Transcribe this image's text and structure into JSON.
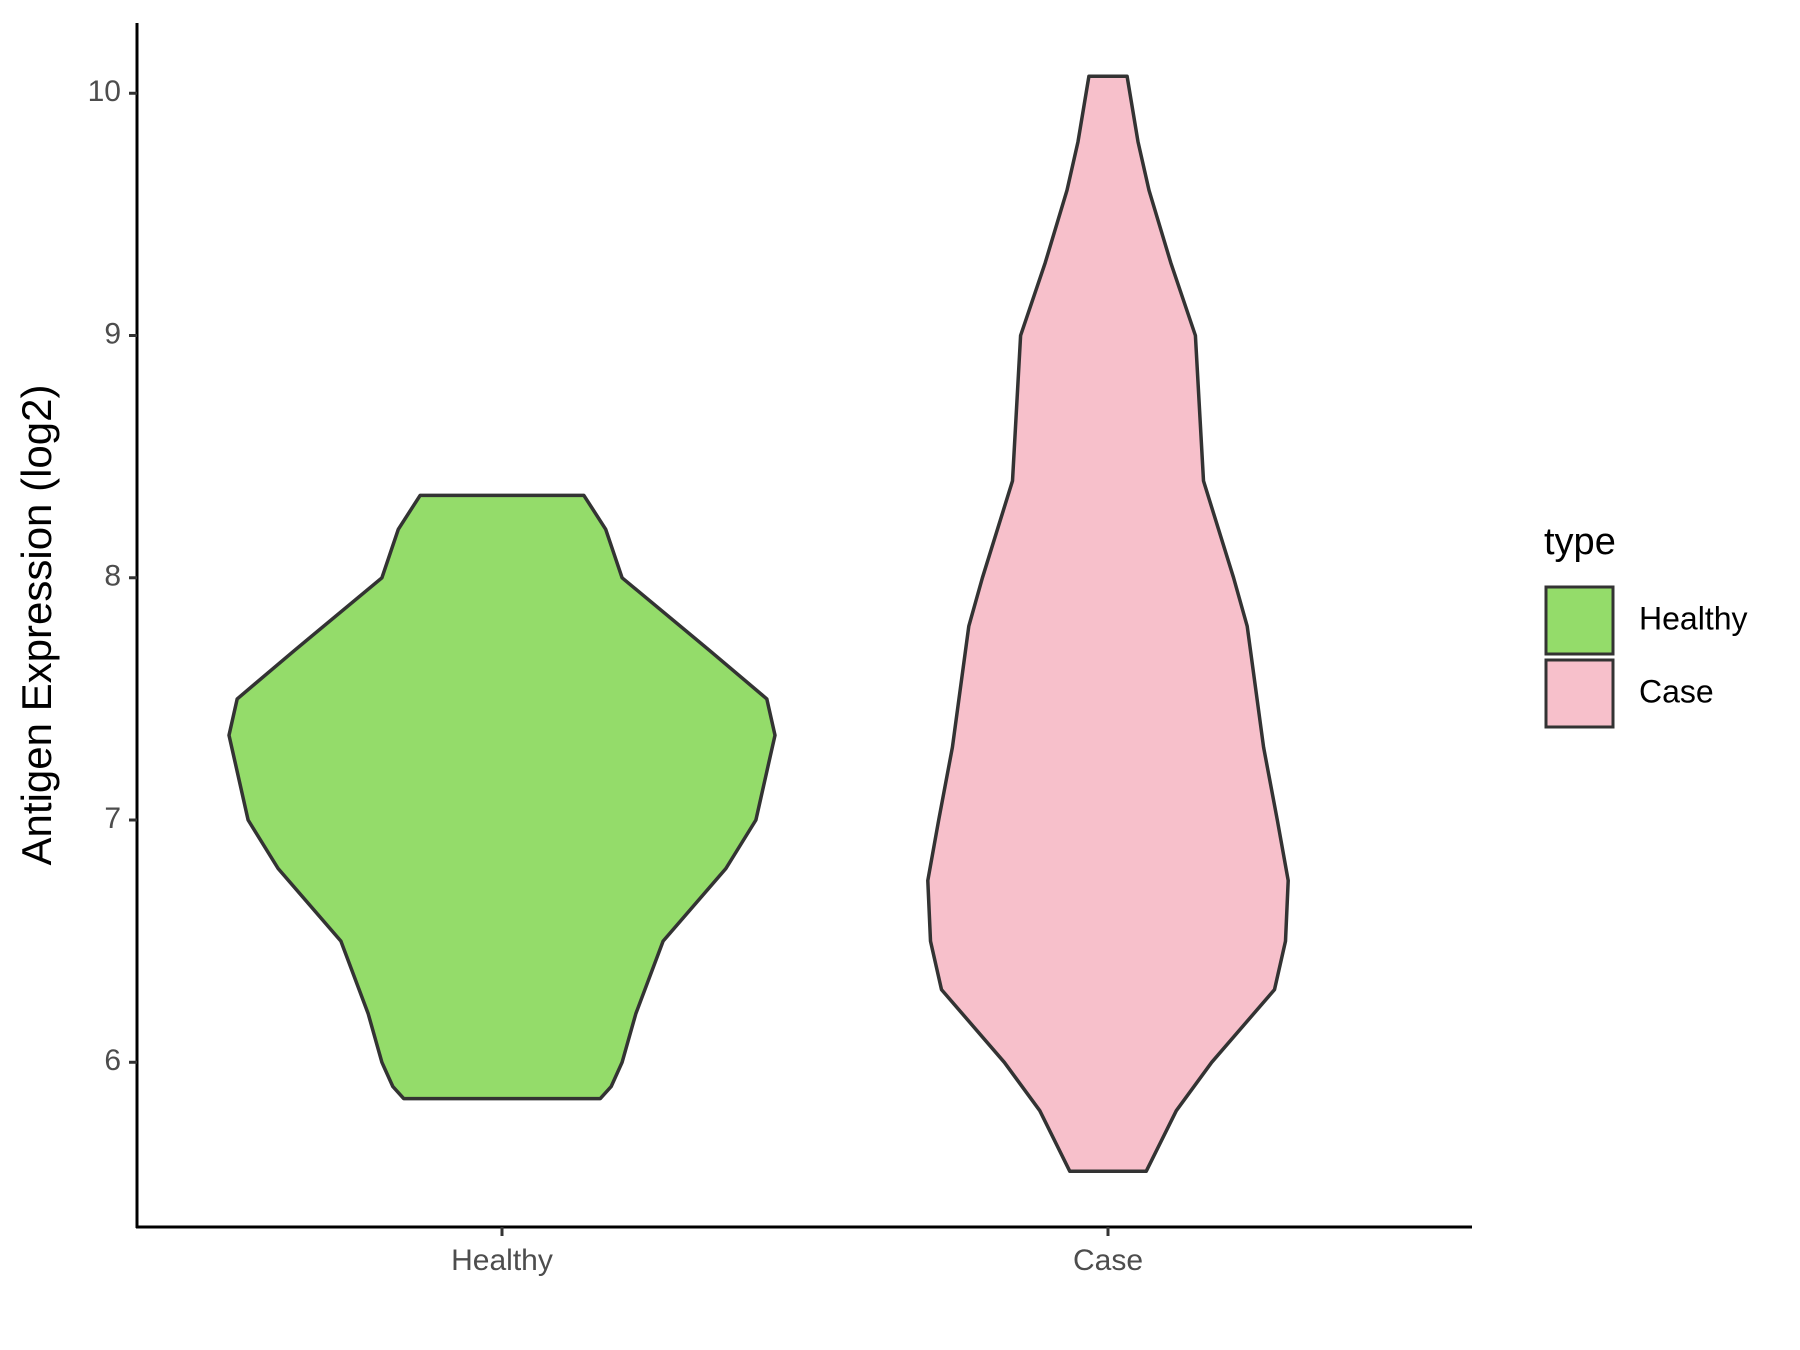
{
  "chart_data": {
    "type": "violin",
    "y_label": "Antigen Expression (log2)",
    "categories": [
      "Healthy",
      "Case"
    ],
    "legend_title": "type",
    "series": [
      {
        "name": "Healthy",
        "color": "#94dc6a",
        "y": [
          5.85,
          5.9,
          6.0,
          6.2,
          6.5,
          6.8,
          7.0,
          7.35,
          7.5,
          7.7,
          8.0,
          8.2,
          8.34
        ],
        "widths": [
          0.36,
          0.4,
          0.44,
          0.49,
          0.59,
          0.82,
          0.93,
          1.0,
          0.97,
          0.76,
          0.44,
          0.38,
          0.3
        ]
      },
      {
        "name": "Case",
        "color": "#f7c0cb",
        "y": [
          5.55,
          5.8,
          6.0,
          6.3,
          6.5,
          6.75,
          7.0,
          7.3,
          7.8,
          8.0,
          8.4,
          8.8,
          9.0,
          9.3,
          9.6,
          9.8,
          10.07
        ],
        "widths": [
          0.14,
          0.25,
          0.38,
          0.61,
          0.65,
          0.66,
          0.62,
          0.57,
          0.51,
          0.46,
          0.35,
          0.33,
          0.32,
          0.23,
          0.15,
          0.11,
          0.07
        ]
      }
    ],
    "ylim": [
      5.32,
      10.29
    ],
    "yticks": [
      6,
      7,
      8,
      9,
      10
    ]
  }
}
